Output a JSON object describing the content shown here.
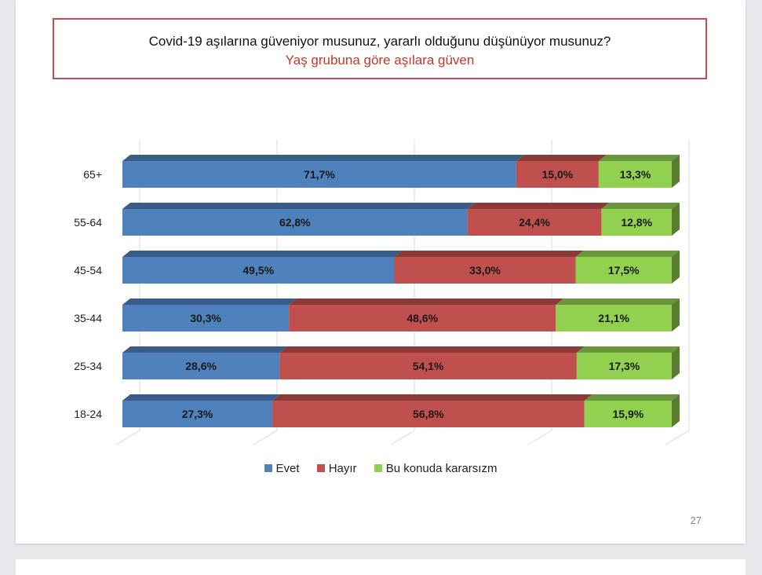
{
  "chart_data": {
    "type": "bar",
    "subtype": "stacked-horizontal-100-3d",
    "title": "Covid-19 aşılarına güveniyor musunuz, yararlı olduğunu düşünüyor musunuz?",
    "subtitle": "Yaş grubuna göre aşılara güven",
    "categories": [
      "65+",
      "55-64",
      "45-54",
      "35-44",
      "25-34",
      "18-24"
    ],
    "series": [
      {
        "name": "Evet",
        "color": "#4f81bd",
        "values": [
          71.7,
          62.8,
          49.5,
          30.3,
          28.6,
          27.3
        ],
        "labels": [
          "71,7%",
          "62,8%",
          "49,5%",
          "30,3%",
          "28,6%",
          "27,3%"
        ]
      },
      {
        "name": "Hayır",
        "color": "#c0504d",
        "values": [
          15.0,
          24.4,
          33.0,
          48.6,
          54.1,
          56.8
        ],
        "labels": [
          "15,0%",
          "24,4%",
          "33,0%",
          "48,6%",
          "54,1%",
          "56,8%"
        ]
      },
      {
        "name": "Bu konuda kararsızm",
        "color": "#92d050",
        "values": [
          13.3,
          12.8,
          17.5,
          21.1,
          17.3,
          15.9
        ],
        "labels": [
          "13,3%",
          "12,8%",
          "17,5%",
          "21,1%",
          "17,3%",
          "15,9%"
        ]
      }
    ],
    "xlim": [
      0,
      100
    ],
    "grid": true,
    "legend_position": "bottom"
  },
  "page_number": "27"
}
